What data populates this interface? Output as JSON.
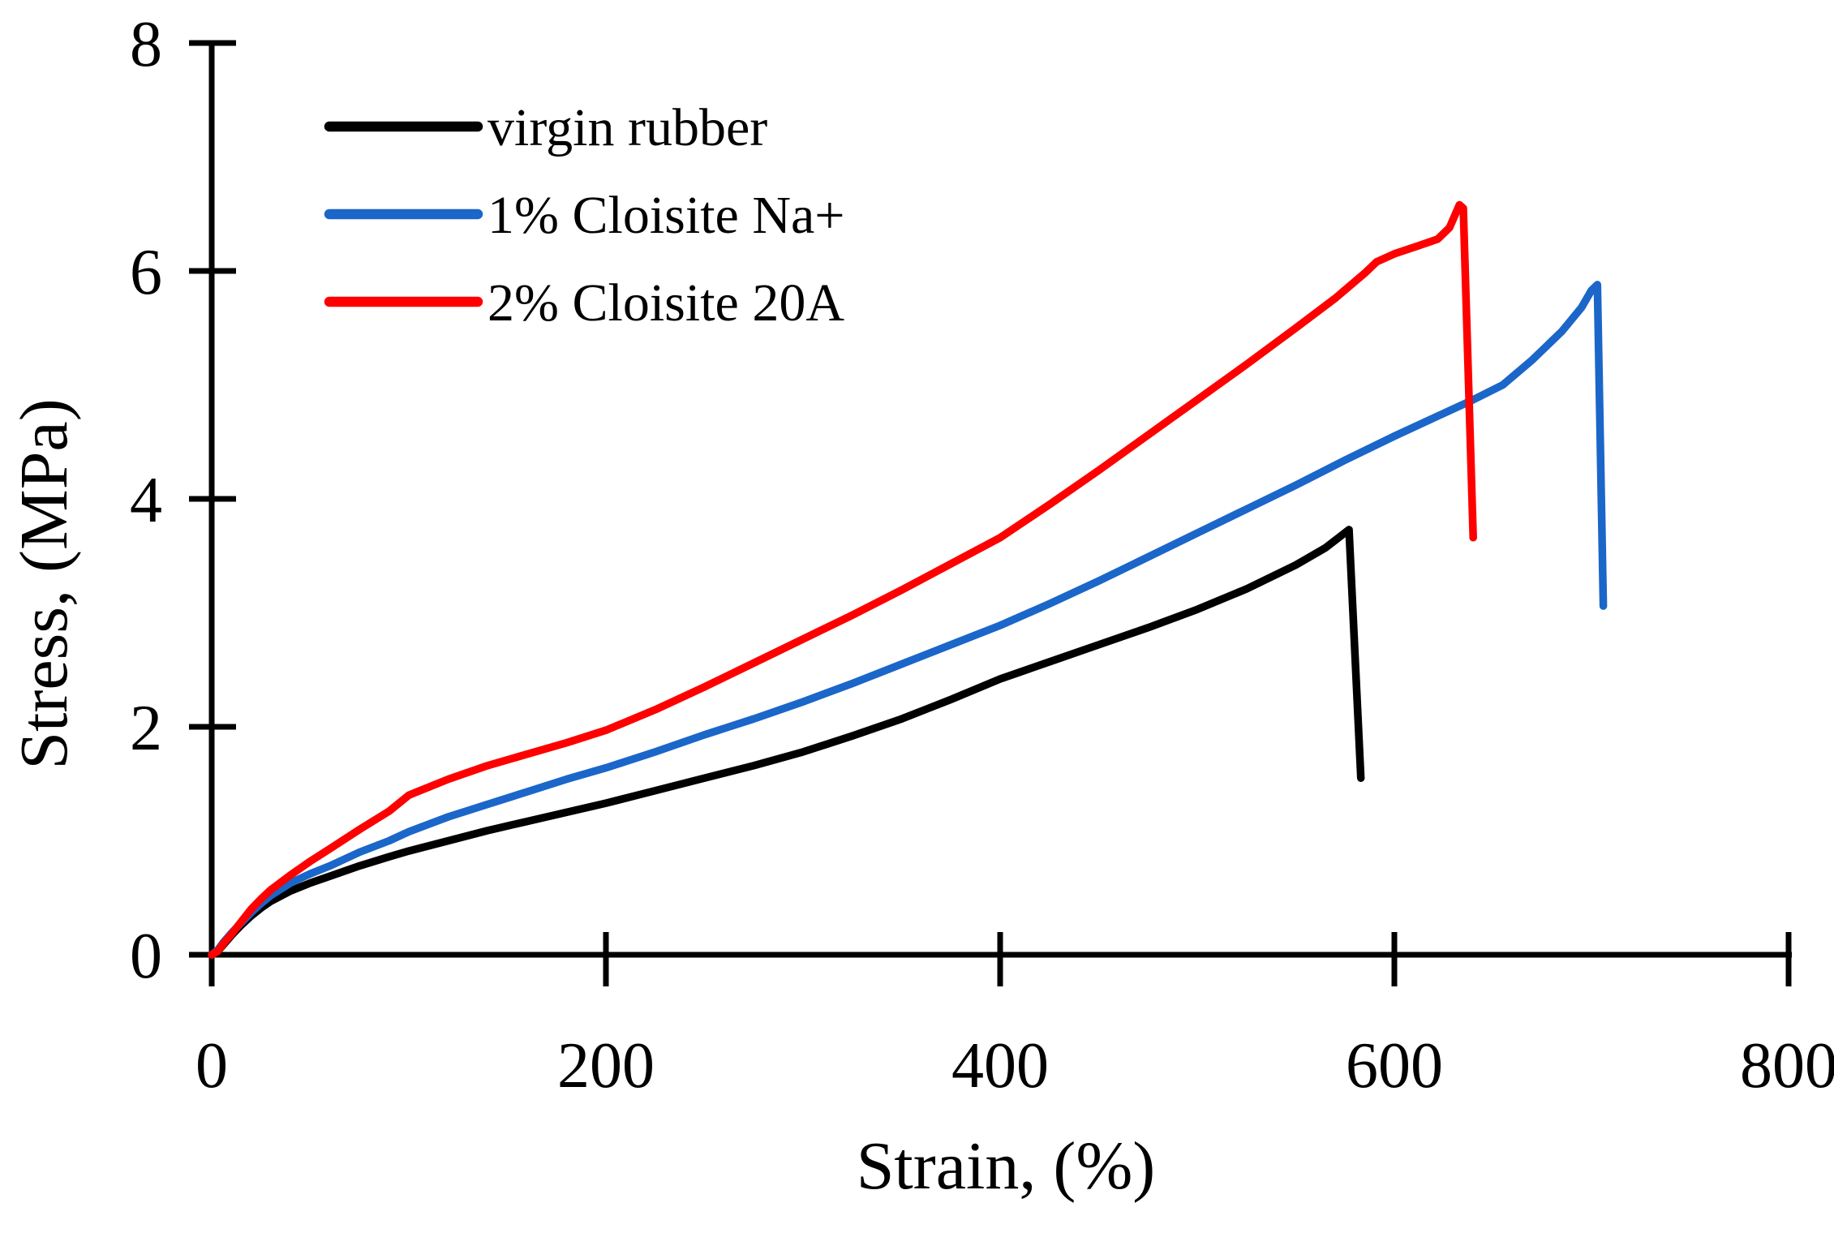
{
  "figure": {
    "background": "#ffffff",
    "axis_color": "#000000"
  },
  "chart_data": {
    "type": "line",
    "title": "",
    "xlabel": "Strain, (%)",
    "ylabel": "Stress, (MPa)",
    "xlim": [
      0,
      800
    ],
    "ylim": [
      0,
      8
    ],
    "x_ticks": [
      0,
      200,
      400,
      600,
      800
    ],
    "y_ticks": [
      0,
      2,
      4,
      6,
      8
    ],
    "grid": false,
    "legend_position": "top-left",
    "series": [
      {
        "name": "virgin rubber",
        "color": "#000000",
        "points": [
          [
            0,
            0
          ],
          [
            3,
            0.03
          ],
          [
            6,
            0.09
          ],
          [
            10,
            0.17
          ],
          [
            15,
            0.26
          ],
          [
            20,
            0.34
          ],
          [
            25,
            0.41
          ],
          [
            30,
            0.47
          ],
          [
            40,
            0.56
          ],
          [
            50,
            0.63
          ],
          [
            60,
            0.69
          ],
          [
            75,
            0.78
          ],
          [
            90,
            0.86
          ],
          [
            100,
            0.91
          ],
          [
            120,
            1.0
          ],
          [
            140,
            1.09
          ],
          [
            160,
            1.17
          ],
          [
            180,
            1.25
          ],
          [
            200,
            1.33
          ],
          [
            225,
            1.44
          ],
          [
            250,
            1.55
          ],
          [
            275,
            1.66
          ],
          [
            300,
            1.78
          ],
          [
            325,
            1.92
          ],
          [
            350,
            2.07
          ],
          [
            375,
            2.24
          ],
          [
            400,
            2.42
          ],
          [
            425,
            2.57
          ],
          [
            450,
            2.72
          ],
          [
            475,
            2.87
          ],
          [
            500,
            3.03
          ],
          [
            525,
            3.21
          ],
          [
            550,
            3.42
          ],
          [
            565,
            3.57
          ],
          [
            577,
            3.73
          ],
          [
            583,
            1.55
          ]
        ]
      },
      {
        "name": "1% Cloisite Na+",
        "color": "#1B66C9",
        "points": [
          [
            0,
            0
          ],
          [
            3,
            0.04
          ],
          [
            6,
            0.11
          ],
          [
            10,
            0.19
          ],
          [
            15,
            0.28
          ],
          [
            20,
            0.37
          ],
          [
            25,
            0.45
          ],
          [
            30,
            0.52
          ],
          [
            40,
            0.63
          ],
          [
            50,
            0.71
          ],
          [
            60,
            0.78
          ],
          [
            75,
            0.9
          ],
          [
            90,
            1.0
          ],
          [
            100,
            1.08
          ],
          [
            120,
            1.21
          ],
          [
            140,
            1.32
          ],
          [
            160,
            1.43
          ],
          [
            180,
            1.54
          ],
          [
            200,
            1.64
          ],
          [
            225,
            1.78
          ],
          [
            250,
            1.93
          ],
          [
            275,
            2.07
          ],
          [
            300,
            2.22
          ],
          [
            325,
            2.38
          ],
          [
            350,
            2.55
          ],
          [
            375,
            2.72
          ],
          [
            400,
            2.89
          ],
          [
            425,
            3.08
          ],
          [
            450,
            3.28
          ],
          [
            475,
            3.49
          ],
          [
            500,
            3.7
          ],
          [
            525,
            3.91
          ],
          [
            550,
            4.12
          ],
          [
            575,
            4.34
          ],
          [
            600,
            4.55
          ],
          [
            620,
            4.71
          ],
          [
            640,
            4.87
          ],
          [
            655,
            5.0
          ],
          [
            670,
            5.22
          ],
          [
            685,
            5.47
          ],
          [
            695,
            5.68
          ],
          [
            700,
            5.83
          ],
          [
            703,
            5.88
          ],
          [
            706,
            3.06
          ]
        ]
      },
      {
        "name": "2% Cloisite 20A",
        "color": "#FE0000",
        "points": [
          [
            0,
            0
          ],
          [
            3,
            0.03
          ],
          [
            6,
            0.1
          ],
          [
            10,
            0.18
          ],
          [
            15,
            0.29
          ],
          [
            20,
            0.4
          ],
          [
            25,
            0.49
          ],
          [
            30,
            0.57
          ],
          [
            40,
            0.7
          ],
          [
            50,
            0.82
          ],
          [
            60,
            0.93
          ],
          [
            75,
            1.1
          ],
          [
            90,
            1.26
          ],
          [
            100,
            1.4
          ],
          [
            120,
            1.54
          ],
          [
            140,
            1.66
          ],
          [
            160,
            1.76
          ],
          [
            180,
            1.86
          ],
          [
            200,
            1.97
          ],
          [
            225,
            2.15
          ],
          [
            250,
            2.35
          ],
          [
            275,
            2.56
          ],
          [
            300,
            2.77
          ],
          [
            325,
            2.98
          ],
          [
            350,
            3.2
          ],
          [
            375,
            3.43
          ],
          [
            400,
            3.66
          ],
          [
            425,
            3.95
          ],
          [
            450,
            4.25
          ],
          [
            475,
            4.56
          ],
          [
            500,
            4.87
          ],
          [
            525,
            5.18
          ],
          [
            550,
            5.5
          ],
          [
            570,
            5.76
          ],
          [
            585,
            5.98
          ],
          [
            591,
            6.08
          ],
          [
            600,
            6.15
          ],
          [
            612,
            6.22
          ],
          [
            622,
            6.28
          ],
          [
            628,
            6.38
          ],
          [
            631,
            6.5
          ],
          [
            633,
            6.58
          ],
          [
            635,
            6.55
          ],
          [
            640,
            3.66
          ]
        ]
      }
    ]
  }
}
